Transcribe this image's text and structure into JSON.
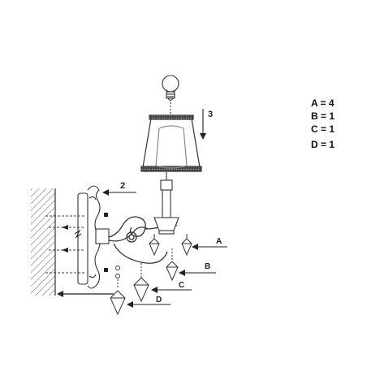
{
  "diagram": {
    "callouts": {
      "step_2": "2",
      "step_3": "3",
      "part_a": "A",
      "part_b": "B",
      "part_c": "C",
      "part_d": "D"
    },
    "legend": [
      {
        "text": "A = 4"
      },
      {
        "text": "B = 1"
      },
      {
        "text": "C = 1"
      },
      {
        "text": "D = 1"
      }
    ]
  }
}
